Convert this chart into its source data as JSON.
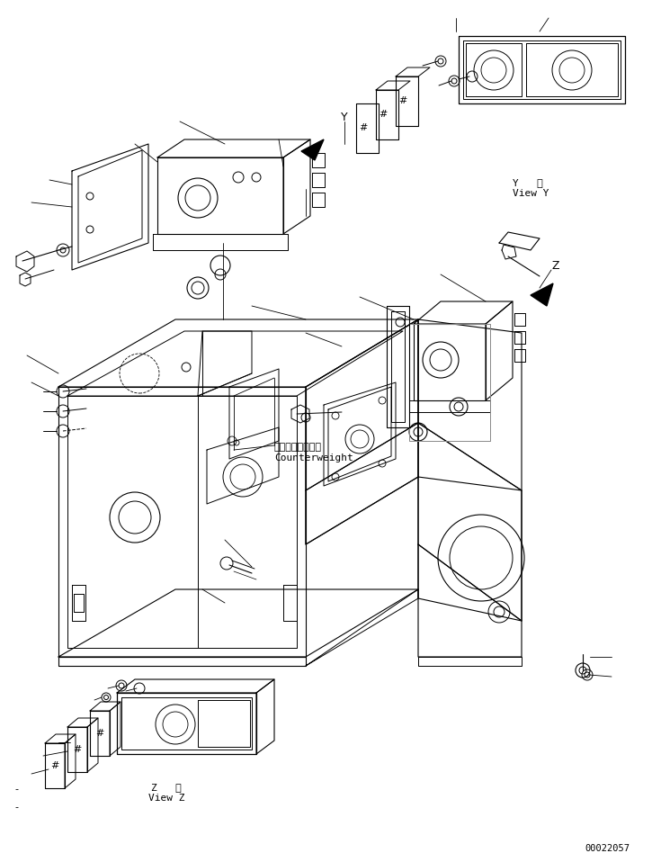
{
  "background_color": "#ffffff",
  "line_color": "#000000",
  "part_number": "00022057",
  "label_y_view_1": "Y   視",
  "label_y_view_2": "View Y",
  "label_z_view_1": "Z   視",
  "label_z_view_2": "View Z",
  "counterweight_jp": "カウンタウェイト",
  "counterweight_en": "Counterweight",
  "y_label": "Y",
  "z_label": "Z"
}
